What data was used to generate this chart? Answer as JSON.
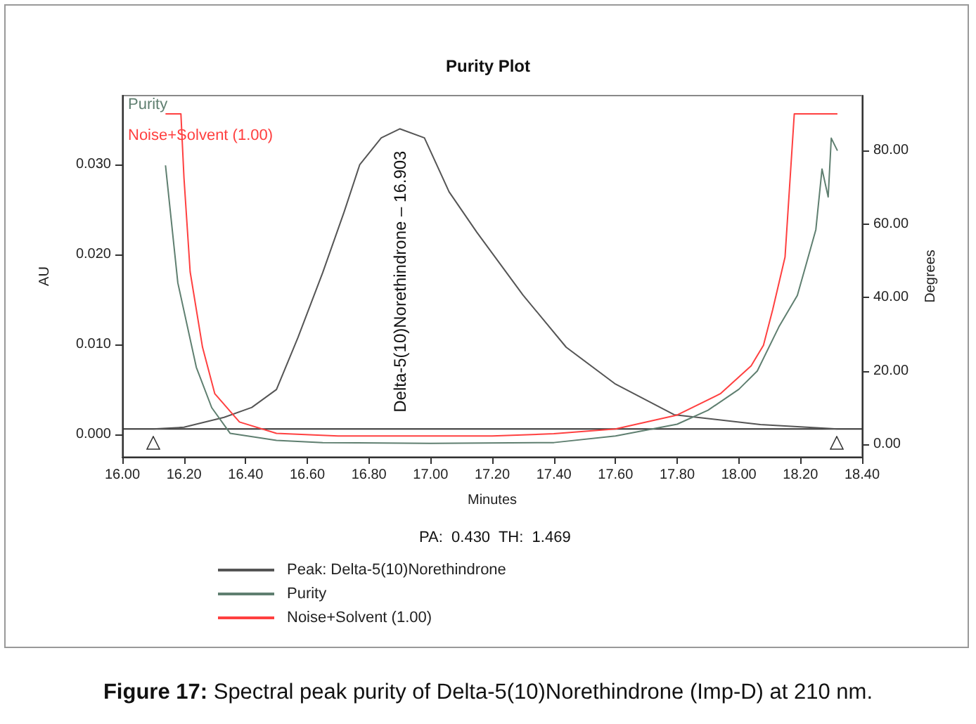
{
  "chart_data": {
    "type": "line",
    "title": "Purity Plot",
    "xlabel": "Minutes",
    "ylabel": "AU",
    "y2label": "Degrees",
    "xlim": [
      16.0,
      18.4
    ],
    "xticks": [
      {
        "value": 16.0,
        "label": "16.00"
      },
      {
        "value": 16.2,
        "label": "16.20"
      },
      {
        "value": 16.4,
        "label": "16.40"
      },
      {
        "value": 16.6,
        "label": "16.60"
      },
      {
        "value": 16.8,
        "label": "16.80"
      },
      {
        "value": 17.0,
        "label": "17.00"
      },
      {
        "value": 17.2,
        "label": "17.20"
      },
      {
        "value": 17.4,
        "label": "17.40"
      },
      {
        "value": 17.6,
        "label": "17.60"
      },
      {
        "value": 17.8,
        "label": "17.80"
      },
      {
        "value": 18.0,
        "label": "18.00"
      },
      {
        "value": 18.2,
        "label": "18.20"
      },
      {
        "value": 18.4,
        "label": "18.40"
      }
    ],
    "ylim": [
      -0.0025,
      0.0377
    ],
    "yticks": [
      {
        "value": 0,
        "label": "0.000"
      },
      {
        "value": 0.01,
        "label": "0.010"
      },
      {
        "value": 0.02,
        "label": "0.020"
      },
      {
        "value": 0.03,
        "label": "0.030"
      }
    ],
    "y2lim": [
      -3.4,
      95
    ],
    "y2ticks": [
      {
        "value": 0,
        "label": "0.00"
      },
      {
        "value": 20,
        "label": "20.00"
      },
      {
        "value": 40,
        "label": "40.00"
      },
      {
        "value": 60,
        "label": "60.00"
      },
      {
        "value": 80,
        "label": "80.00"
      }
    ],
    "grid": false,
    "marker": "none",
    "line_style": "solid",
    "legend": "bottom",
    "series": [
      {
        "name": "Peak: Delta-5(10)Norethindrone",
        "color": "#555555",
        "x": [
          16.1,
          16.2,
          16.33,
          16.42,
          16.5,
          16.57,
          16.65,
          16.72,
          16.77,
          16.84,
          16.9,
          16.98,
          17.06,
          17.15,
          17.3,
          17.44,
          17.6,
          17.79,
          18.07,
          18.32
        ],
        "values": [
          0.0006,
          0.0008,
          0.0019,
          0.003,
          0.005,
          0.0108,
          0.018,
          0.0248,
          0.03,
          0.033,
          0.034,
          0.033,
          0.027,
          0.0225,
          0.0155,
          0.0097,
          0.0056,
          0.0022,
          0.0011,
          0.0006
        ]
      },
      {
        "name": "Purity",
        "color": "#5f7f70",
        "axis": "y2",
        "x": [
          16.14,
          16.18,
          16.24,
          16.29,
          16.35,
          16.5,
          16.65,
          17.0,
          17.4,
          17.6,
          17.8,
          17.9,
          18.0,
          18.06,
          18.13,
          18.19,
          18.22,
          18.25,
          18.27,
          18.29,
          18.3,
          18.32
        ],
        "values": [
          76,
          44,
          21,
          10,
          3,
          1.1,
          0.5,
          0.3,
          0.5,
          2.3,
          5.5,
          9.3,
          15,
          20,
          32,
          40.6,
          49.5,
          58.5,
          75,
          67.4,
          83.4,
          80
        ]
      },
      {
        "name": "Noise+Solvent (1.00)",
        "color": "#ff4040",
        "axis": "y2",
        "x": [
          16.14,
          16.19,
          16.2,
          16.22,
          16.26,
          16.3,
          16.38,
          16.5,
          16.7,
          17.2,
          17.4,
          17.6,
          17.8,
          17.94,
          18.04,
          18.08,
          18.11,
          18.15,
          18.18,
          18.32
        ],
        "values": [
          90,
          90,
          72.5,
          47,
          26.5,
          13.8,
          6.1,
          3,
          2.3,
          2.3,
          2.9,
          4.2,
          8,
          13.8,
          21.4,
          27,
          36.7,
          51,
          90,
          90
        ]
      }
    ],
    "ref_lines": [
      {
        "axis": "y",
        "value": 0.0006,
        "color": "#333333"
      }
    ],
    "annotations": [
      "Delta-5(10)Norethindrone – 16.903",
      "Purity",
      "Noise+Solvent (1.00)",
      "PA:  0.430  TH:  1.469",
      "Figure 17: Spectral peak purity of Delta-5(10)Norethindrone (Imp-D) at 210 nm."
    ]
  }
}
